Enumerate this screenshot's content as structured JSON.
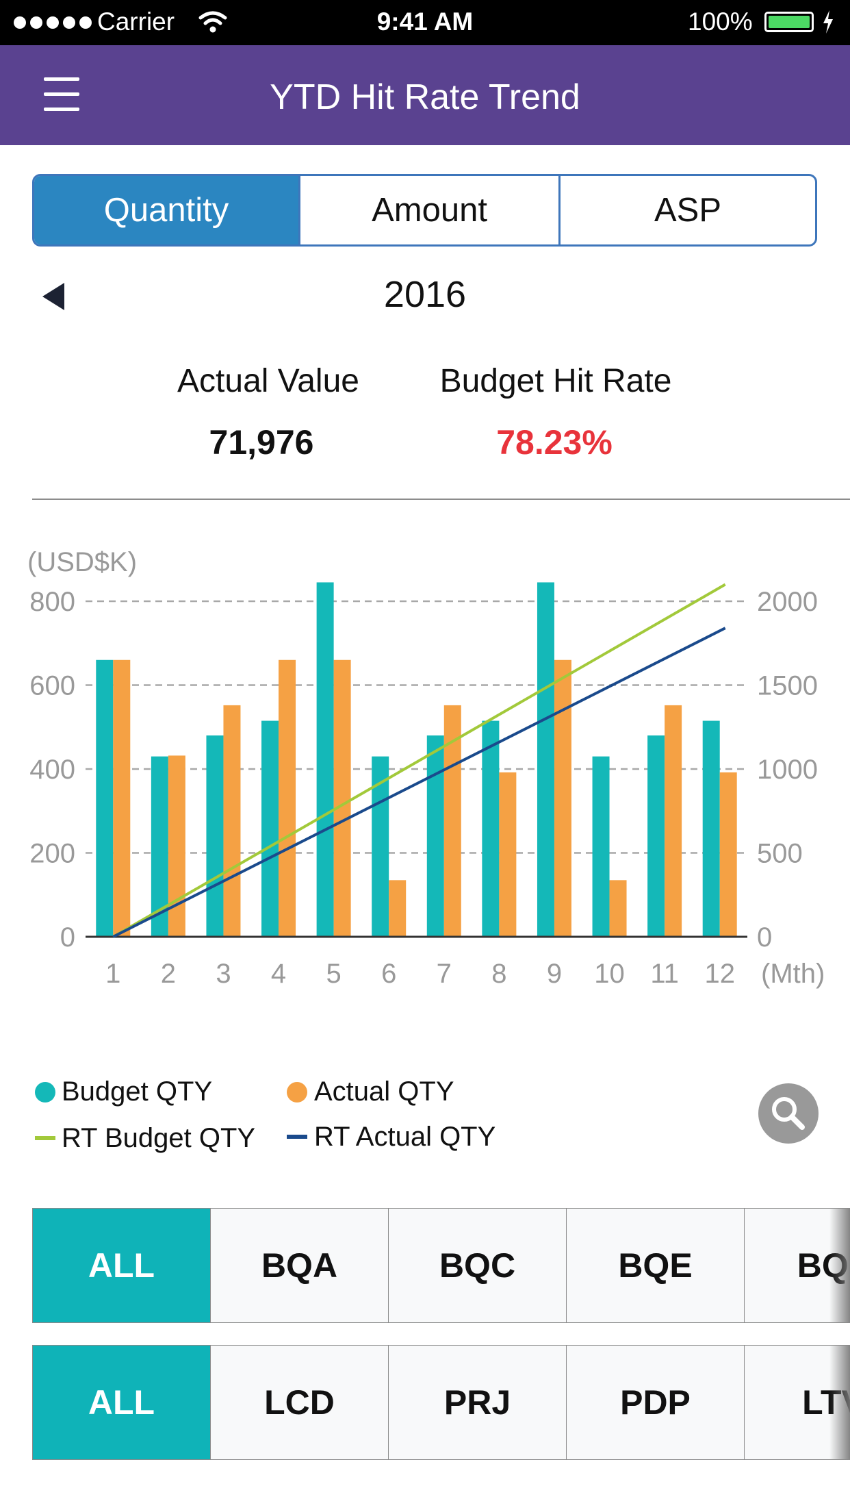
{
  "status_bar": {
    "carrier": "Carrier",
    "time": "9:41 AM",
    "battery": "100%"
  },
  "nav": {
    "title": "YTD Hit Rate Trend",
    "menu_icon": "hamburger-menu-icon"
  },
  "segments": [
    {
      "label": "Quantity",
      "active": true
    },
    {
      "label": "Amount",
      "active": false
    },
    {
      "label": "ASP",
      "active": false
    }
  ],
  "year": {
    "label": "2016",
    "prev_icon": "triangle-left-icon"
  },
  "kpi": {
    "actual_label": "Actual Value",
    "actual_value": "71,976",
    "hit_label": "Budget Hit Rate",
    "hit_value": "78.23%",
    "hit_color": "#e8333b"
  },
  "chart_data": {
    "type": "bar",
    "unit_label": "(USD$K)",
    "x_unit_label": "(Mth)",
    "categories": [
      "1",
      "2",
      "3",
      "4",
      "5",
      "6",
      "7",
      "8",
      "9",
      "10",
      "11",
      "12"
    ],
    "ylim": [
      0,
      800
    ],
    "y_ticks": [
      "0",
      "200",
      "400",
      "600",
      "800"
    ],
    "y2lim": [
      0,
      2000
    ],
    "y2_ticks": [
      "0",
      "500",
      "1000",
      "1500",
      "2000"
    ],
    "grid": "dashed horizontal",
    "legend_position": "bottom",
    "series": [
      {
        "name": "Budget QTY",
        "kind": "bar",
        "axis": "left",
        "color": "#14b8b8",
        "values": [
          660,
          430,
          480,
          515,
          845,
          430,
          480,
          515,
          845,
          430,
          480,
          515
        ]
      },
      {
        "name": "Actual QTY",
        "kind": "bar",
        "axis": "left",
        "color": "#f5a144",
        "values": [
          660,
          432,
          552,
          660,
          660,
          135,
          552,
          392,
          660,
          135,
          552,
          392
        ]
      },
      {
        "name": "RT Budget QTY",
        "kind": "line",
        "axis": "right",
        "color": "#a2c93a",
        "x": [
          1,
          12
        ],
        "values": [
          0,
          2100
        ]
      },
      {
        "name": "RT Actual QTY",
        "kind": "line",
        "axis": "right",
        "color": "#1a4a8c",
        "x": [
          1,
          12
        ],
        "values": [
          0,
          1840
        ]
      }
    ]
  },
  "legend": {
    "budget": "Budget QTY",
    "actual": "Actual QTY",
    "rt_budget": "RT Budget QTY",
    "rt_actual": "RT Actual QTY"
  },
  "zoom_icon": "magnifier-icon",
  "filters_row1": [
    {
      "label": "ALL",
      "active": true
    },
    {
      "label": "BQA",
      "active": false
    },
    {
      "label": "BQC",
      "active": false
    },
    {
      "label": "BQE",
      "active": false
    },
    {
      "label": "BQL",
      "active": false
    }
  ],
  "filters_row2": [
    {
      "label": "ALL",
      "active": true
    },
    {
      "label": "LCD",
      "active": false
    },
    {
      "label": "PRJ",
      "active": false
    },
    {
      "label": "PDP",
      "active": false
    },
    {
      "label": "LTV",
      "active": false
    }
  ]
}
